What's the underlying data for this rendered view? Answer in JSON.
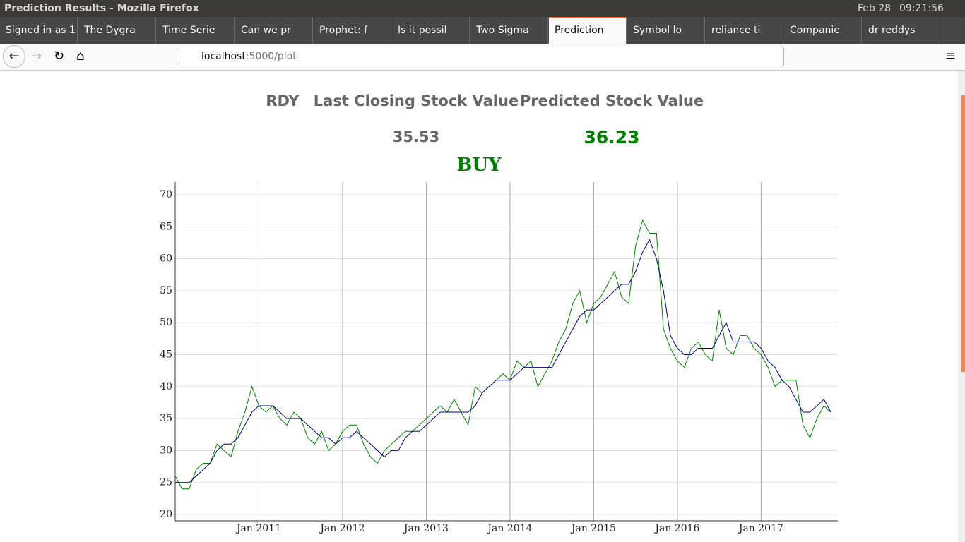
{
  "window": {
    "title": "Prediction Results - Mozilla Firefox",
    "date": "Feb 28",
    "time": "09:21:56"
  },
  "tabs": [
    "Signed in as 1",
    "The Dygra",
    "Time Serie",
    "Can we pr",
    "Prophet: f",
    "Is it possil",
    "Two Sigma",
    "Prediction",
    "Symbol lo",
    "reliance ti",
    "Companie",
    "dr reddys"
  ],
  "url": {
    "host": "localhost",
    "rest": ":5000/plot"
  },
  "header": {
    "ticker": "RDY",
    "last_label": "Last Closing Stock Value",
    "pred_label": "Predicted Stock Value",
    "last_value": 35.53,
    "pred_value": 36.23,
    "signal": "BUY"
  },
  "chart_data": {
    "type": "line",
    "x": [
      "2010-01",
      "2010-02",
      "2010-03",
      "2010-04",
      "2010-05",
      "2010-06",
      "2010-07",
      "2010-08",
      "2010-09",
      "2010-10",
      "2010-11",
      "2010-12",
      "2011-01",
      "2011-02",
      "2011-03",
      "2011-04",
      "2011-05",
      "2011-06",
      "2011-07",
      "2011-08",
      "2011-09",
      "2011-10",
      "2011-11",
      "2011-12",
      "2012-01",
      "2012-02",
      "2012-03",
      "2012-04",
      "2012-05",
      "2012-06",
      "2012-07",
      "2012-08",
      "2012-09",
      "2012-10",
      "2012-11",
      "2012-12",
      "2013-01",
      "2013-02",
      "2013-03",
      "2013-04",
      "2013-05",
      "2013-06",
      "2013-07",
      "2013-08",
      "2013-09",
      "2013-10",
      "2013-11",
      "2013-12",
      "2014-01",
      "2014-02",
      "2014-03",
      "2014-04",
      "2014-05",
      "2014-06",
      "2014-07",
      "2014-08",
      "2014-09",
      "2014-10",
      "2014-11",
      "2014-12",
      "2015-01",
      "2015-02",
      "2015-03",
      "2015-04",
      "2015-05",
      "2015-06",
      "2015-07",
      "2015-08",
      "2015-09",
      "2015-10",
      "2015-11",
      "2015-12",
      "2016-01",
      "2016-02",
      "2016-03",
      "2016-04",
      "2016-05",
      "2016-06",
      "2016-07",
      "2016-08",
      "2016-09",
      "2016-10",
      "2016-11",
      "2016-12",
      "2017-01",
      "2017-02",
      "2017-03",
      "2017-04",
      "2017-05",
      "2017-06",
      "2017-07",
      "2017-08",
      "2017-09",
      "2017-10",
      "2017-11"
    ],
    "series": [
      {
        "color": "#008000",
        "values": [
          26,
          24,
          24,
          27,
          28,
          28,
          31,
          30,
          29,
          33,
          36,
          40,
          37,
          36,
          37,
          35,
          34,
          36,
          35,
          32,
          31,
          33,
          30,
          31,
          33,
          34,
          34,
          31,
          29,
          28,
          30,
          31,
          32,
          33,
          33,
          34,
          35,
          36,
          37,
          36,
          38,
          36,
          34,
          40,
          39,
          40,
          41,
          42,
          41,
          44,
          43,
          44,
          40,
          42,
          44,
          47,
          49,
          53,
          55,
          50,
          53,
          54,
          56,
          58,
          54,
          53,
          62,
          66,
          64,
          64,
          49,
          46,
          44,
          43,
          46,
          47,
          45,
          44,
          52,
          46,
          45,
          48,
          48,
          46,
          45,
          43,
          40,
          41,
          41,
          41,
          34,
          32,
          35,
          37,
          36
        ]
      },
      {
        "color": "#000080",
        "values": [
          25,
          25,
          25,
          26,
          27,
          28,
          30,
          31,
          31,
          32,
          34,
          36,
          37,
          37,
          37,
          36,
          35,
          35,
          35,
          34,
          33,
          32,
          32,
          31,
          32,
          32,
          33,
          32,
          31,
          30,
          29,
          30,
          30,
          32,
          33,
          33,
          34,
          35,
          36,
          36,
          36,
          36,
          36,
          37,
          39,
          40,
          41,
          41,
          41,
          42,
          43,
          43,
          43,
          43,
          43,
          45,
          47,
          49,
          51,
          52,
          52,
          53,
          54,
          55,
          56,
          56,
          58,
          61,
          63,
          60,
          55,
          48,
          46,
          45,
          45,
          46,
          46,
          46,
          48,
          50,
          47,
          47,
          47,
          47,
          46,
          44,
          43,
          41,
          40,
          38,
          36,
          36,
          37,
          38,
          36
        ]
      }
    ],
    "xlim": [
      "2010-01",
      "2017-12"
    ],
    "xticks": [
      {
        "value": "2011-01",
        "label": "Jan 2011"
      },
      {
        "value": "2012-01",
        "label": "Jan 2012"
      },
      {
        "value": "2013-01",
        "label": "Jan 2013"
      },
      {
        "value": "2014-01",
        "label": "Jan 2014"
      },
      {
        "value": "2015-01",
        "label": "Jan 2015"
      },
      {
        "value": "2016-01",
        "label": "Jan 2016"
      },
      {
        "value": "2017-01",
        "label": "Jan 2017"
      }
    ],
    "ylim": [
      19,
      72
    ],
    "yticks": [
      20,
      25,
      30,
      35,
      40,
      45,
      50,
      55,
      60,
      65,
      70
    ],
    "grid": true
  }
}
